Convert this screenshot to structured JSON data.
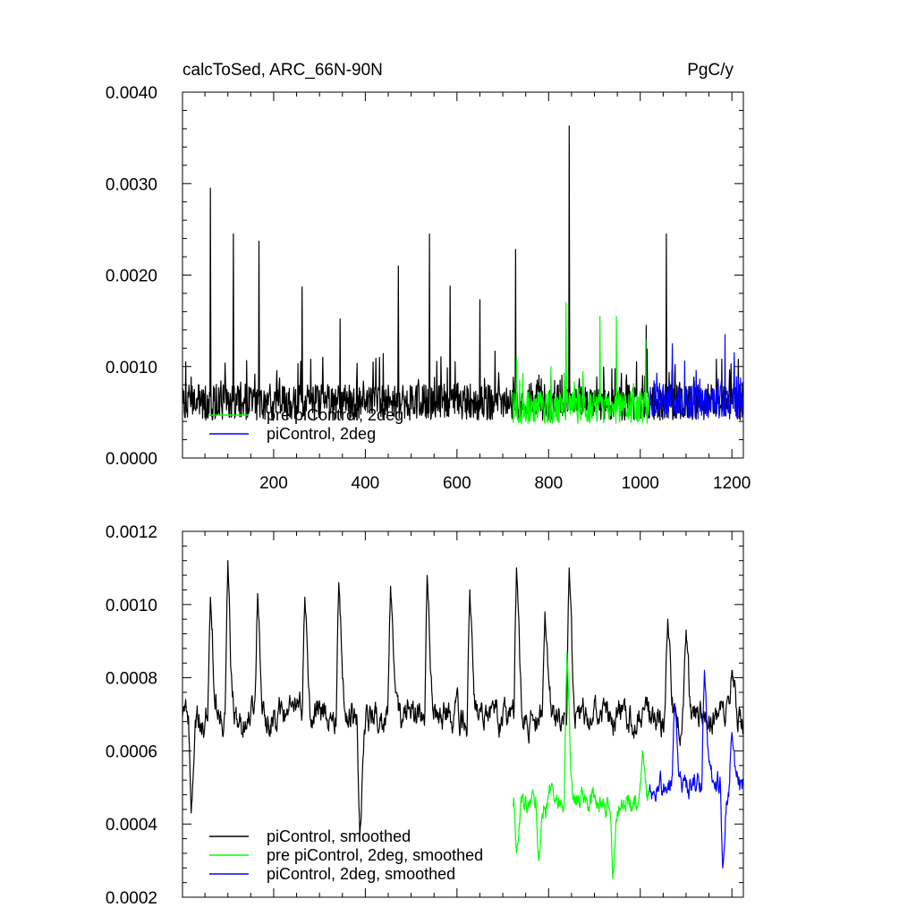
{
  "chart_data": [
    {
      "type": "line",
      "title": "calcToSed, ARC_66N-90N",
      "units": "PgC/y",
      "xlim": [
        1,
        1225
      ],
      "ylim": [
        0.0,
        0.004
      ],
      "x_ticks": [
        200,
        400,
        600,
        800,
        1000,
        1200
      ],
      "x_tick_labels": [
        "200",
        "400",
        "600",
        "800",
        "1000",
        "1200"
      ],
      "y_ticks": [
        0.0,
        0.001,
        0.002,
        0.003,
        0.004
      ],
      "y_tick_labels": [
        "0.0000",
        "0.0010",
        "0.0020",
        "0.0030",
        "0.0040"
      ],
      "legend_placement": "bottom-left",
      "legend": [
        {
          "label": "pre piControl, 2deg",
          "color": "#00ff00"
        },
        {
          "label": "piControl, 2deg",
          "color": "#0000ff"
        }
      ],
      "series": [
        {
          "color": "#000000",
          "x_range": [
            1,
            1225
          ],
          "baseline": 0.00055,
          "noise": 0.0002,
          "peaks": [
            [
              8,
              0.00105
            ],
            [
              62,
              0.00295
            ],
            [
              112,
              0.00245
            ],
            [
              168,
              0.00237
            ],
            [
              262,
              0.00187
            ],
            [
              345,
              0.00152
            ],
            [
              472,
              0.0021
            ],
            [
              540,
              0.00245
            ],
            [
              585,
              0.00188
            ],
            [
              650,
              0.00173
            ],
            [
              728,
              0.00228
            ],
            [
              845,
              0.00363
            ],
            [
              1013,
              0.00145
            ],
            [
              1057,
              0.00245
            ]
          ]
        },
        {
          "color": "#00ff00",
          "x_range": [
            722,
            1020
          ],
          "baseline": 0.0005,
          "noise": 0.00018,
          "peaks": [
            [
              730,
              0.0011
            ],
            [
              838,
              0.0017
            ],
            [
              912,
              0.00155
            ],
            [
              948,
              0.00155
            ],
            [
              1012,
              0.0013
            ]
          ]
        },
        {
          "color": "#0000ff",
          "x_range": [
            1020,
            1225
          ],
          "baseline": 0.00055,
          "noise": 0.00018,
          "peaks": [
            [
              1070,
              0.00125
            ],
            [
              1185,
              0.00135
            ],
            [
              1205,
              0.00115
            ]
          ]
        }
      ]
    },
    {
      "type": "line",
      "xlim": [
        1,
        1225
      ],
      "ylim": [
        0.0002,
        0.0012
      ],
      "x_ticks": [
        200,
        400,
        600,
        800,
        1000,
        1200
      ],
      "y_ticks": [
        0.0002,
        0.0004,
        0.0006,
        0.0008,
        0.001,
        0.0012
      ],
      "y_tick_labels": [
        "0.0002",
        "0.0004",
        "0.0006",
        "0.0008",
        "0.0010",
        "0.0012"
      ],
      "legend_placement": "bottom-left",
      "legend": [
        {
          "label": "piControl, smoothed",
          "color": "#000000"
        },
        {
          "label": "pre piControl, 2deg, smoothed",
          "color": "#00ff00"
        },
        {
          "label": "piControl, 2deg, smoothed",
          "color": "#0000ff"
        }
      ],
      "series": [
        {
          "name": "piControl, smoothed",
          "color": "#000000",
          "x_range": [
            1,
            1225
          ],
          "baseline": 0.00066,
          "noise": 0.00012,
          "peaks": [
            [
              3,
              0.00072
            ],
            [
              20,
              0.00043
            ],
            [
              62,
              0.00102
            ],
            [
              100,
              0.00112
            ],
            [
              165,
              0.00103
            ],
            [
              268,
              0.00102
            ],
            [
              342,
              0.00106
            ],
            [
              388,
              0.00037
            ],
            [
              455,
              0.00105
            ],
            [
              535,
              0.00108
            ],
            [
              628,
              0.00104
            ],
            [
              730,
              0.0011
            ],
            [
              792,
              0.00098
            ],
            [
              845,
              0.0011
            ],
            [
              1060,
              0.00096
            ],
            [
              1100,
              0.00093
            ],
            [
              1200,
              0.00082
            ]
          ]
        },
        {
          "name": "pre piControl, 2deg, smoothed",
          "color": "#00ff00",
          "x_range": [
            722,
            1020
          ],
          "baseline": 0.00044,
          "noise": 9e-05,
          "peaks": [
            [
              730,
              0.00032
            ],
            [
              778,
              0.0003
            ],
            [
              840,
              0.00087
            ],
            [
              940,
              0.00025
            ],
            [
              1005,
              0.0006
            ]
          ]
        },
        {
          "name": "piControl, 2deg, smoothed",
          "color": "#0000ff",
          "x_range": [
            1020,
            1225
          ],
          "baseline": 0.00048,
          "noise": 9e-05,
          "peaks": [
            [
              1075,
              0.00073
            ],
            [
              1140,
              0.00082
            ],
            [
              1180,
              0.00028
            ],
            [
              1200,
              0.00065
            ]
          ]
        }
      ]
    }
  ]
}
